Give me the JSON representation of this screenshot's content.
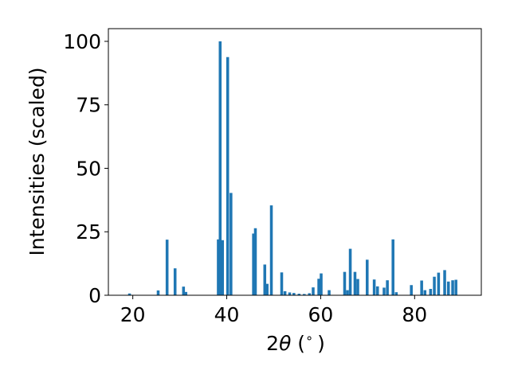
{
  "chart_data": {
    "type": "bar",
    "xlabel": "2θ (°)",
    "xlabel_parts": {
      "prefix": "2",
      "symbol": "θ",
      "suffix": " (",
      "degree": "∘",
      "close": ")"
    },
    "ylabel": "Intensities (scaled)",
    "xlim": [
      14.8,
      94.2
    ],
    "ylim": [
      0,
      105
    ],
    "xticks": [
      20,
      40,
      60,
      80
    ],
    "yticks": [
      0,
      25,
      50,
      75,
      100
    ],
    "bar_width": 0.6,
    "bar_color": "#1f77b4",
    "grid": false,
    "x": [
      19.3,
      25.4,
      27.3,
      29.0,
      30.8,
      31.3,
      38.2,
      38.6,
      39.1,
      40.2,
      40.9,
      45.7,
      46.1,
      48.1,
      48.6,
      49.5,
      51.7,
      52.4,
      53.4,
      54.3,
      55.4,
      56.5,
      57.6,
      58.4,
      59.6,
      60.1,
      61.8,
      65.1,
      65.7,
      66.3,
      67.3,
      67.9,
      69.9,
      71.4,
      72.1,
      73.5,
      74.2,
      75.4,
      76.1,
      79.3,
      81.5,
      82.2,
      83.4,
      84.2,
      85.1,
      86.4,
      87.2,
      88.1,
      88.8
    ],
    "values": [
      0.7,
      1.9,
      21.9,
      10.6,
      3.4,
      1.3,
      22.0,
      100.0,
      21.7,
      93.8,
      40.3,
      24.3,
      26.4,
      12.1,
      4.5,
      35.4,
      9.0,
      1.6,
      1.1,
      0.9,
      0.6,
      0.5,
      0.8,
      3.1,
      6.5,
      8.6,
      2.0,
      9.2,
      2.0,
      18.3,
      9.2,
      6.4,
      14.0,
      6.2,
      3.5,
      3.0,
      5.9,
      22.0,
      1.2,
      4.0,
      5.8,
      2.0,
      2.5,
      7.3,
      8.9,
      9.9,
      5.4,
      5.9,
      6.1
    ]
  }
}
